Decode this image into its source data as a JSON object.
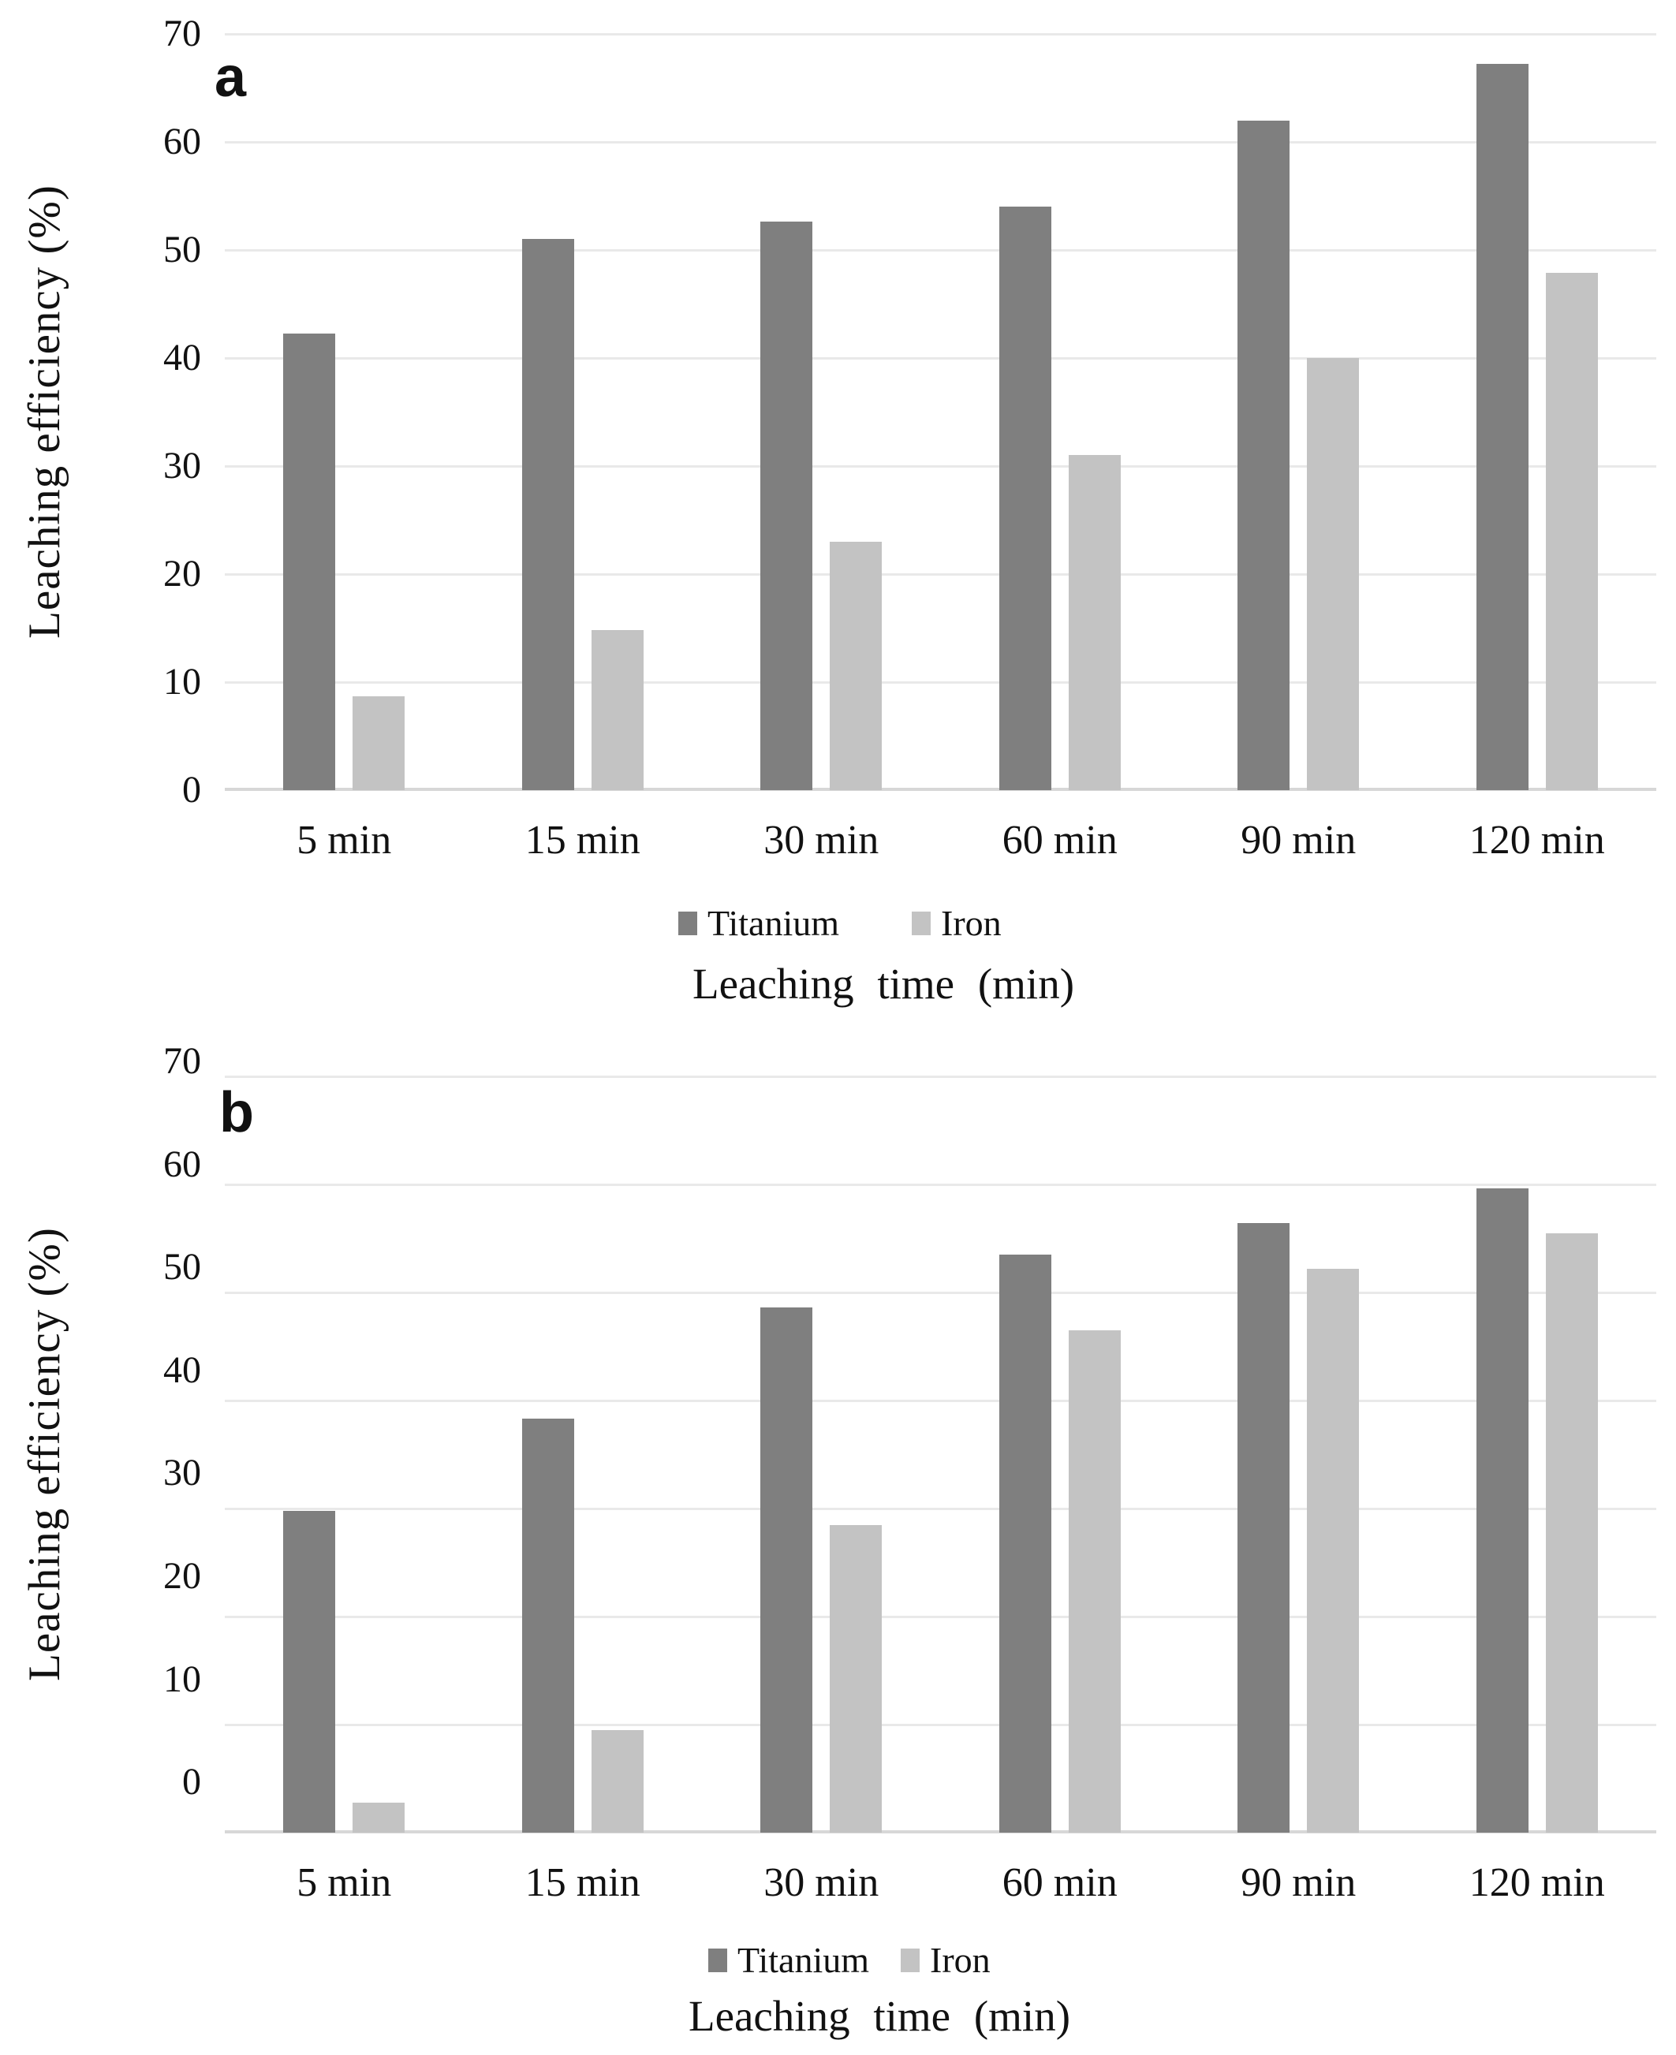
{
  "figure": {
    "background": "#ffffff",
    "panels": [
      "a",
      "b"
    ]
  },
  "colors": {
    "titanium": "#7f7f7f",
    "iron": "#c3c3c3",
    "gridline": "#e9e9e9",
    "axis_line": "#d7d7d7",
    "text": "#111111"
  },
  "chart_data": [
    {
      "id": "a",
      "panel_label": "a",
      "type": "bar",
      "title": "",
      "xlabel": "Leaching time (min)",
      "ylabel": "Leaching efficiency (%)",
      "ylim": [
        0,
        70
      ],
      "yticks": [
        0,
        10,
        20,
        30,
        40,
        50,
        60,
        70
      ],
      "grid": true,
      "legend_position": "bottom",
      "categories": [
        "5 min",
        "15 min",
        "30 min",
        "60 min",
        "90 min",
        "120 min"
      ],
      "series": [
        {
          "name": "Titanium",
          "color_key": "titanium",
          "values": [
            42.3,
            51.0,
            52.6,
            54.0,
            62.0,
            67.2
          ]
        },
        {
          "name": "Iron",
          "color_key": "iron",
          "values": [
            8.7,
            14.8,
            23.0,
            31.0,
            40.0,
            47.9
          ]
        }
      ]
    },
    {
      "id": "b",
      "panel_label": "b",
      "type": "bar",
      "title": "",
      "xlabel": "Leaching time (min)",
      "ylabel": "Leaching efficiency (%)",
      "ylim": [
        0,
        70
      ],
      "yticks": [
        0,
        10,
        20,
        30,
        40,
        50,
        60,
        70
      ],
      "grid": true,
      "legend_position": "bottom",
      "categories": [
        "5 min",
        "15 min",
        "30 min",
        "60 min",
        "90 min",
        "120 min"
      ],
      "series": [
        {
          "name": "Titanium",
          "color_key": "titanium",
          "values": [
            29.8,
            38.3,
            48.6,
            53.5,
            56.4,
            59.6
          ]
        },
        {
          "name": "Iron",
          "color_key": "iron",
          "values": [
            2.8,
            9.5,
            28.5,
            46.5,
            52.2,
            55.5
          ]
        }
      ]
    }
  ]
}
